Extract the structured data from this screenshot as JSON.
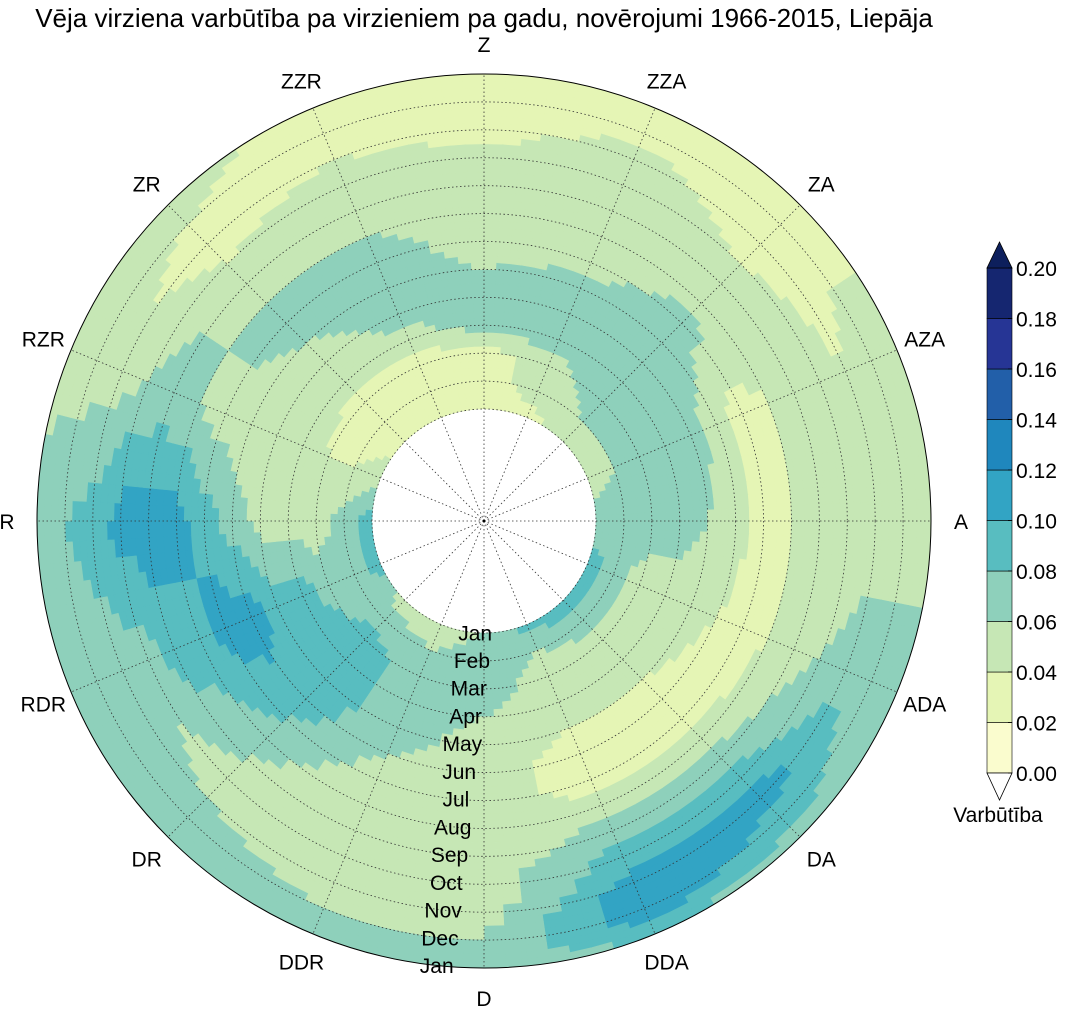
{
  "chart_data": {
    "type": "heatmap",
    "subtype": "polar-filled-contour",
    "title": "Vēja virziena varbūtība pa virzieniem pa gadu, novērojumi 1966-2015, Liepāja",
    "directions": [
      "Z",
      "ZZA",
      "ZA",
      "AZA",
      "A",
      "ADA",
      "DA",
      "DDA",
      "D",
      "DDR",
      "DR",
      "RDR",
      "R",
      "RZR",
      "ZR",
      "ZZR"
    ],
    "months": [
      "Jan",
      "Feb",
      "Mar",
      "Apr",
      "May",
      "Jun",
      "Jul",
      "Aug",
      "Sep",
      "Oct",
      "Nov",
      "Dec",
      "Jan"
    ],
    "values": [
      [
        0.03,
        0.03,
        0.03,
        0.07,
        0.07,
        0.06,
        0.05,
        0.05,
        0.05,
        0.05,
        0.03,
        0.03,
        0.03
      ],
      [
        0.03,
        0.05,
        0.05,
        0.07,
        0.07,
        0.07,
        0.05,
        0.05,
        0.05,
        0.05,
        0.05,
        0.03,
        0.03
      ],
      [
        0.05,
        0.06,
        0.07,
        0.07,
        0.07,
        0.07,
        0.07,
        0.05,
        0.05,
        0.04,
        0.03,
        0.03,
        0.03
      ],
      [
        0.05,
        0.06,
        0.07,
        0.07,
        0.07,
        0.05,
        0.03,
        0.04,
        0.05,
        0.05,
        0.04,
        0.05,
        0.05
      ],
      [
        0.07,
        0.07,
        0.07,
        0.07,
        0.06,
        0.05,
        0.03,
        0.04,
        0.05,
        0.05,
        0.05,
        0.05,
        0.05
      ],
      [
        0.09,
        0.07,
        0.05,
        0.05,
        0.05,
        0.04,
        0.03,
        0.04,
        0.05,
        0.06,
        0.07,
        0.07,
        0.07
      ],
      [
        0.09,
        0.07,
        0.05,
        0.05,
        0.04,
        0.03,
        0.03,
        0.05,
        0.07,
        0.09,
        0.11,
        0.09,
        0.07
      ],
      [
        0.09,
        0.06,
        0.05,
        0.04,
        0.04,
        0.03,
        0.03,
        0.05,
        0.07,
        0.09,
        0.11,
        0.12,
        0.08
      ],
      [
        0.06,
        0.07,
        0.07,
        0.06,
        0.05,
        0.05,
        0.05,
        0.05,
        0.05,
        0.05,
        0.05,
        0.06,
        0.07
      ],
      [
        0.05,
        0.06,
        0.07,
        0.07,
        0.07,
        0.06,
        0.05,
        0.04,
        0.04,
        0.05,
        0.05,
        0.06,
        0.07
      ],
      [
        0.05,
        0.07,
        0.09,
        0.09,
        0.09,
        0.09,
        0.08,
        0.07,
        0.06,
        0.05,
        0.06,
        0.07,
        0.07
      ],
      [
        0.09,
        0.07,
        0.07,
        0.09,
        0.09,
        0.11,
        0.11,
        0.09,
        0.09,
        0.07,
        0.07,
        0.07,
        0.07
      ],
      [
        0.09,
        0.07,
        0.05,
        0.05,
        0.05,
        0.07,
        0.09,
        0.11,
        0.11,
        0.11,
        0.09,
        0.08,
        0.07
      ],
      [
        0.05,
        0.04,
        0.04,
        0.05,
        0.05,
        0.05,
        0.05,
        0.06,
        0.07,
        0.06,
        0.05,
        0.05,
        0.05
      ],
      [
        0.03,
        0.03,
        0.03,
        0.05,
        0.05,
        0.06,
        0.07,
        0.06,
        0.05,
        0.04,
        0.03,
        0.04,
        0.05
      ],
      [
        0.03,
        0.03,
        0.03,
        0.05,
        0.07,
        0.07,
        0.07,
        0.06,
        0.05,
        0.05,
        0.04,
        0.03,
        0.03
      ]
    ],
    "levels": [
      0.0,
      0.02,
      0.04,
      0.06,
      0.08,
      0.1,
      0.12,
      0.14,
      0.16,
      0.18,
      0.2
    ],
    "level_labels": [
      "0.00",
      "0.02",
      "0.04",
      "0.06",
      "0.08",
      "0.10",
      "0.12",
      "0.14",
      "0.16",
      "0.18",
      "0.20"
    ],
    "colors": [
      "#fafcce",
      "#e5f5b5",
      "#c6e7b5",
      "#8ed0bb",
      "#58bdc0",
      "#32a4c4",
      "#1f87bd",
      "#225fa9",
      "#263595",
      "#152670"
    ],
    "over_color": "#0d1f5c",
    "under_color": "#ffffff",
    "colorbar_label": "Varbūtība",
    "theta_direction": "clockwise",
    "theta_zero": "top",
    "grid": true
  }
}
